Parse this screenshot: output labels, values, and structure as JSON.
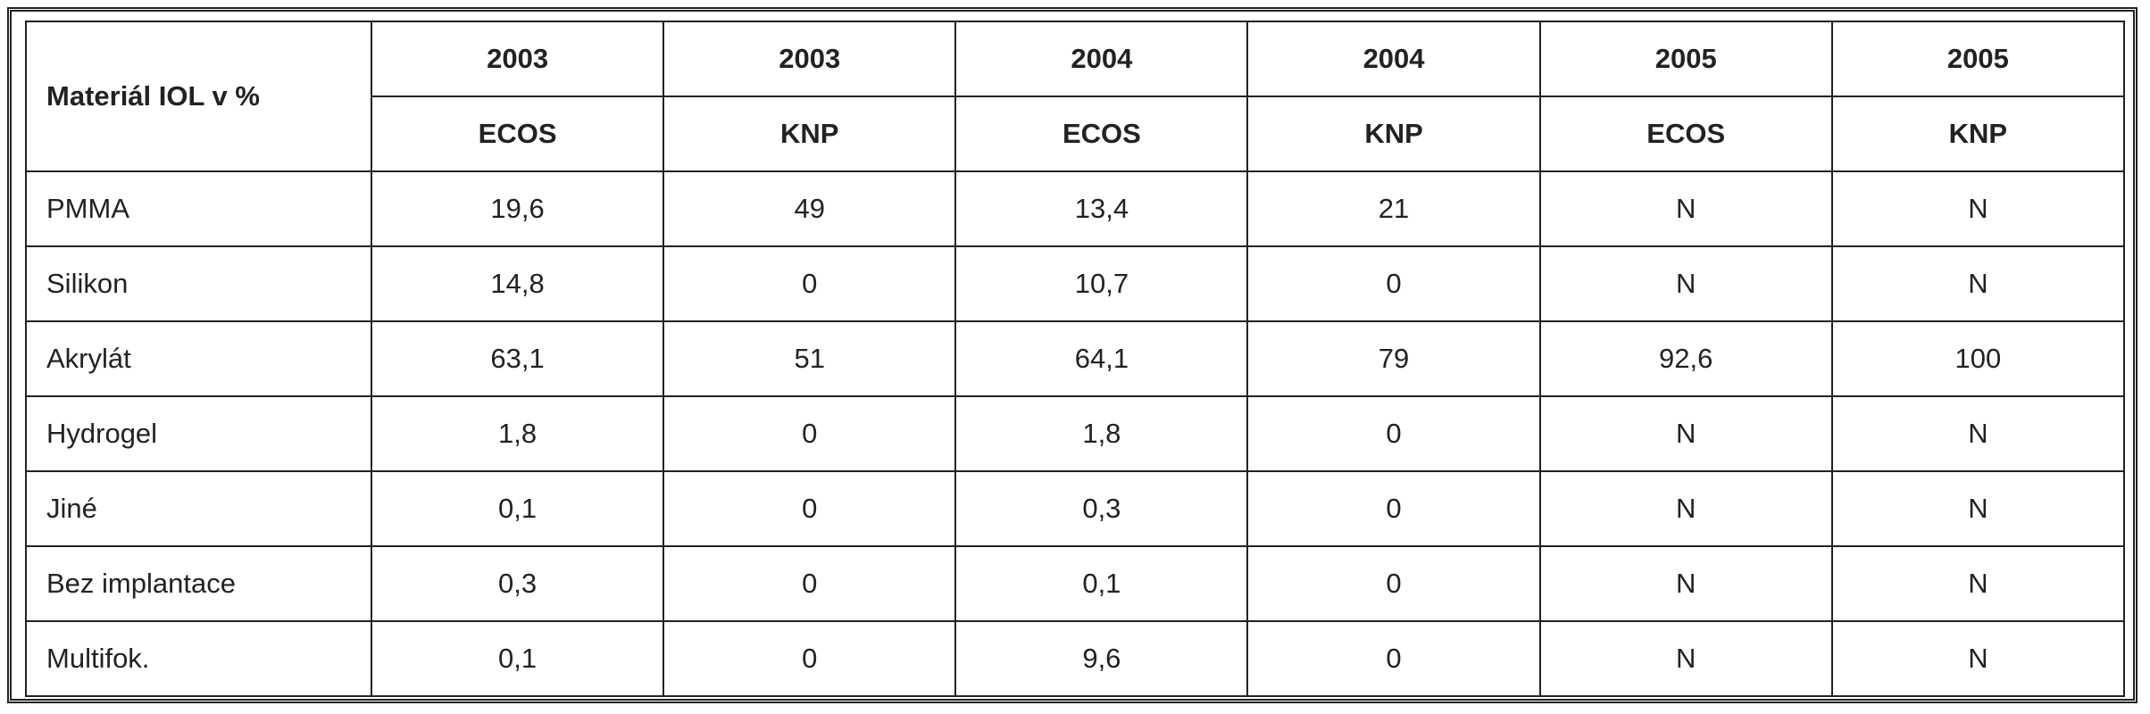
{
  "table": {
    "header": {
      "corner": "Materiál IOL v  %",
      "years": [
        "2003",
        "2003",
        "2004",
        "2004",
        "2005",
        "2005"
      ],
      "sources": [
        "ECOS",
        "KNP",
        "ECOS",
        "KNP",
        "ECOS",
        "KNP"
      ]
    },
    "rows": [
      [
        "PMMA",
        "19,6",
        "49",
        "13,4",
        "21",
        "N",
        "N"
      ],
      [
        "Silikon",
        "14,8",
        "0",
        "10,7",
        "0",
        "N",
        "N"
      ],
      [
        "Akrylát",
        "63,1",
        "51",
        "64,1",
        "79",
        "92,6",
        "100"
      ],
      [
        "Hydrogel",
        "1,8",
        "0",
        "1,8",
        "0",
        "N",
        "N"
      ],
      [
        "Jiné",
        "0,1",
        "0",
        "0,3",
        "0",
        "N",
        "N"
      ],
      [
        "Bez implantace",
        "0,3",
        "0",
        "0,1",
        "0",
        "N",
        "N"
      ],
      [
        "Multifok.",
        "0,1",
        "0",
        "9,6",
        "0",
        "N",
        "N"
      ]
    ]
  }
}
